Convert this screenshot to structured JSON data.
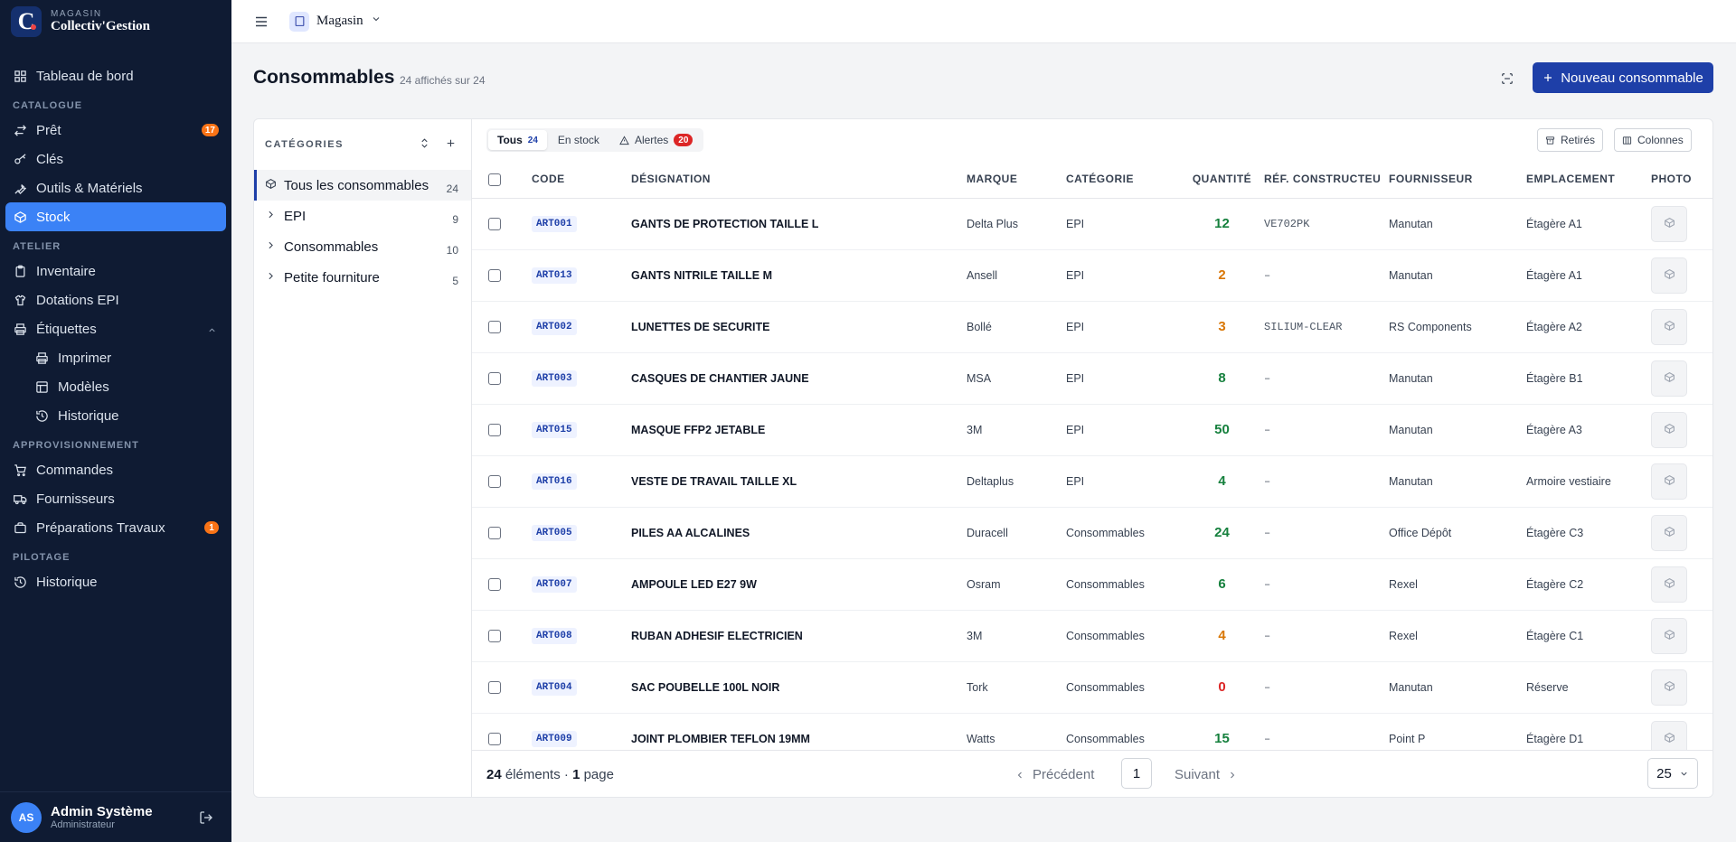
{
  "brand": {
    "small": "MAGASIN",
    "name": "Collectiv'Gestion",
    "logo_letter": "C"
  },
  "sidebar": {
    "items": [
      {
        "label": "Tableau de bord",
        "icon": "dashboard-icon"
      },
      {
        "section": "CATALOGUE"
      },
      {
        "label": "Prêt",
        "icon": "transfer-icon",
        "badge": "17"
      },
      {
        "label": "Clés",
        "icon": "key-icon"
      },
      {
        "label": "Outils & Matériels",
        "icon": "wrench-icon"
      },
      {
        "label": "Stock",
        "icon": "box-icon",
        "active": true
      },
      {
        "section": "ATELIER"
      },
      {
        "label": "Inventaire",
        "icon": "clipboard-icon"
      },
      {
        "label": "Dotations EPI",
        "icon": "shirt-icon"
      },
      {
        "label": "Étiquettes",
        "icon": "printer-icon",
        "expanded": true
      },
      {
        "label": "Imprimer",
        "icon": "printer-icon",
        "sub": true
      },
      {
        "label": "Modèles",
        "icon": "template-icon",
        "sub": true
      },
      {
        "label": "Historique",
        "icon": "history-icon",
        "sub": true
      },
      {
        "section": "APPROVISIONNEMENT"
      },
      {
        "label": "Commandes",
        "icon": "cart-icon"
      },
      {
        "label": "Fournisseurs",
        "icon": "truck-icon"
      },
      {
        "label": "Préparations Travaux",
        "icon": "briefcase-icon",
        "badge": "1"
      },
      {
        "section": "PILOTAGE"
      },
      {
        "label": "Historique",
        "icon": "history-icon"
      }
    ],
    "user": {
      "initials": "AS",
      "name": "Admin Système",
      "role": "Administrateur"
    }
  },
  "topbar": {
    "store": "Magasin"
  },
  "page": {
    "title": "Consommables",
    "count": "24 affichés sur 24",
    "new_button": "Nouveau consommable"
  },
  "categories": {
    "title": "CATÉGORIES",
    "items": [
      {
        "label": "Tous les consommables",
        "count": "24",
        "active": true
      },
      {
        "label": "EPI",
        "count": "9"
      },
      {
        "label": "Consommables",
        "count": "10"
      },
      {
        "label": "Petite fourniture",
        "count": "5"
      }
    ]
  },
  "filters": {
    "all": {
      "label": "Tous",
      "count": "24"
    },
    "stock": {
      "label": "En stock"
    },
    "alerts": {
      "label": "Alertes",
      "count": "20"
    },
    "retired": "Retirés",
    "columns": "Colonnes"
  },
  "table": {
    "headers": {
      "code": "CODE",
      "designation": "DÉSIGNATION",
      "brand": "MARQUE",
      "category": "CATÉGORIE",
      "qty": "QUANTITÉ",
      "ref": "RÉF. CONSTRUCTEU",
      "supplier": "FOURNISSEUR",
      "location": "EMPLACEMENT",
      "photo": "PHOTO"
    },
    "rows": [
      {
        "code": "ART001",
        "designation": "GANTS DE PROTECTION TAILLE L",
        "brand": "Delta Plus",
        "category": "EPI",
        "qty": "12",
        "qty_color": "#15803d",
        "ref": "VE702PK",
        "supplier": "Manutan",
        "location": "Étagère A1"
      },
      {
        "code": "ART013",
        "designation": "GANTS NITRILE TAILLE M",
        "brand": "Ansell",
        "category": "EPI",
        "qty": "2",
        "qty_color": "#d97706",
        "ref": "–",
        "supplier": "Manutan",
        "location": "Étagère A1"
      },
      {
        "code": "ART002",
        "designation": "LUNETTES DE SECURITE",
        "brand": "Bollé",
        "category": "EPI",
        "qty": "3",
        "qty_color": "#d97706",
        "ref": "SILIUM-CLEAR",
        "supplier": "RS Components",
        "location": "Étagère A2"
      },
      {
        "code": "ART003",
        "designation": "CASQUES DE CHANTIER JAUNE",
        "brand": "MSA",
        "category": "EPI",
        "qty": "8",
        "qty_color": "#15803d",
        "ref": "–",
        "supplier": "Manutan",
        "location": "Étagère B1"
      },
      {
        "code": "ART015",
        "designation": "MASQUE FFP2 JETABLE",
        "brand": "3M",
        "category": "EPI",
        "qty": "50",
        "qty_color": "#15803d",
        "ref": "–",
        "supplier": "Manutan",
        "location": "Étagère A3"
      },
      {
        "code": "ART016",
        "designation": "VESTE DE TRAVAIL TAILLE XL",
        "brand": "Deltaplus",
        "category": "EPI",
        "qty": "4",
        "qty_color": "#15803d",
        "ref": "–",
        "supplier": "Manutan",
        "location": "Armoire vestiaire"
      },
      {
        "code": "ART005",
        "designation": "PILES AA ALCALINES",
        "brand": "Duracell",
        "category": "Consommables",
        "qty": "24",
        "qty_color": "#15803d",
        "ref": "–",
        "supplier": "Office Dépôt",
        "location": "Étagère C3"
      },
      {
        "code": "ART007",
        "designation": "AMPOULE LED E27 9W",
        "brand": "Osram",
        "category": "Consommables",
        "qty": "6",
        "qty_color": "#15803d",
        "ref": "–",
        "supplier": "Rexel",
        "location": "Étagère C2"
      },
      {
        "code": "ART008",
        "designation": "RUBAN ADHESIF ELECTRICIEN",
        "brand": "3M",
        "category": "Consommables",
        "qty": "4",
        "qty_color": "#d97706",
        "ref": "–",
        "supplier": "Rexel",
        "location": "Étagère C1"
      },
      {
        "code": "ART004",
        "designation": "SAC POUBELLE 100L NOIR",
        "brand": "Tork",
        "category": "Consommables",
        "qty": "0",
        "qty_color": "#dc2626",
        "ref": "–",
        "supplier": "Manutan",
        "location": "Réserve"
      },
      {
        "code": "ART009",
        "designation": "JOINT PLOMBIER TEFLON 19MM",
        "brand": "Watts",
        "category": "Consommables",
        "qty": "15",
        "qty_color": "#15803d",
        "ref": "–",
        "supplier": "Point P",
        "location": "Étagère D1"
      }
    ]
  },
  "footer": {
    "count": "24",
    "count_label": "éléments ·",
    "pages": "1",
    "pages_label": "page",
    "prev": "Précédent",
    "next": "Suivant",
    "current": "1",
    "per_page": "25"
  }
}
